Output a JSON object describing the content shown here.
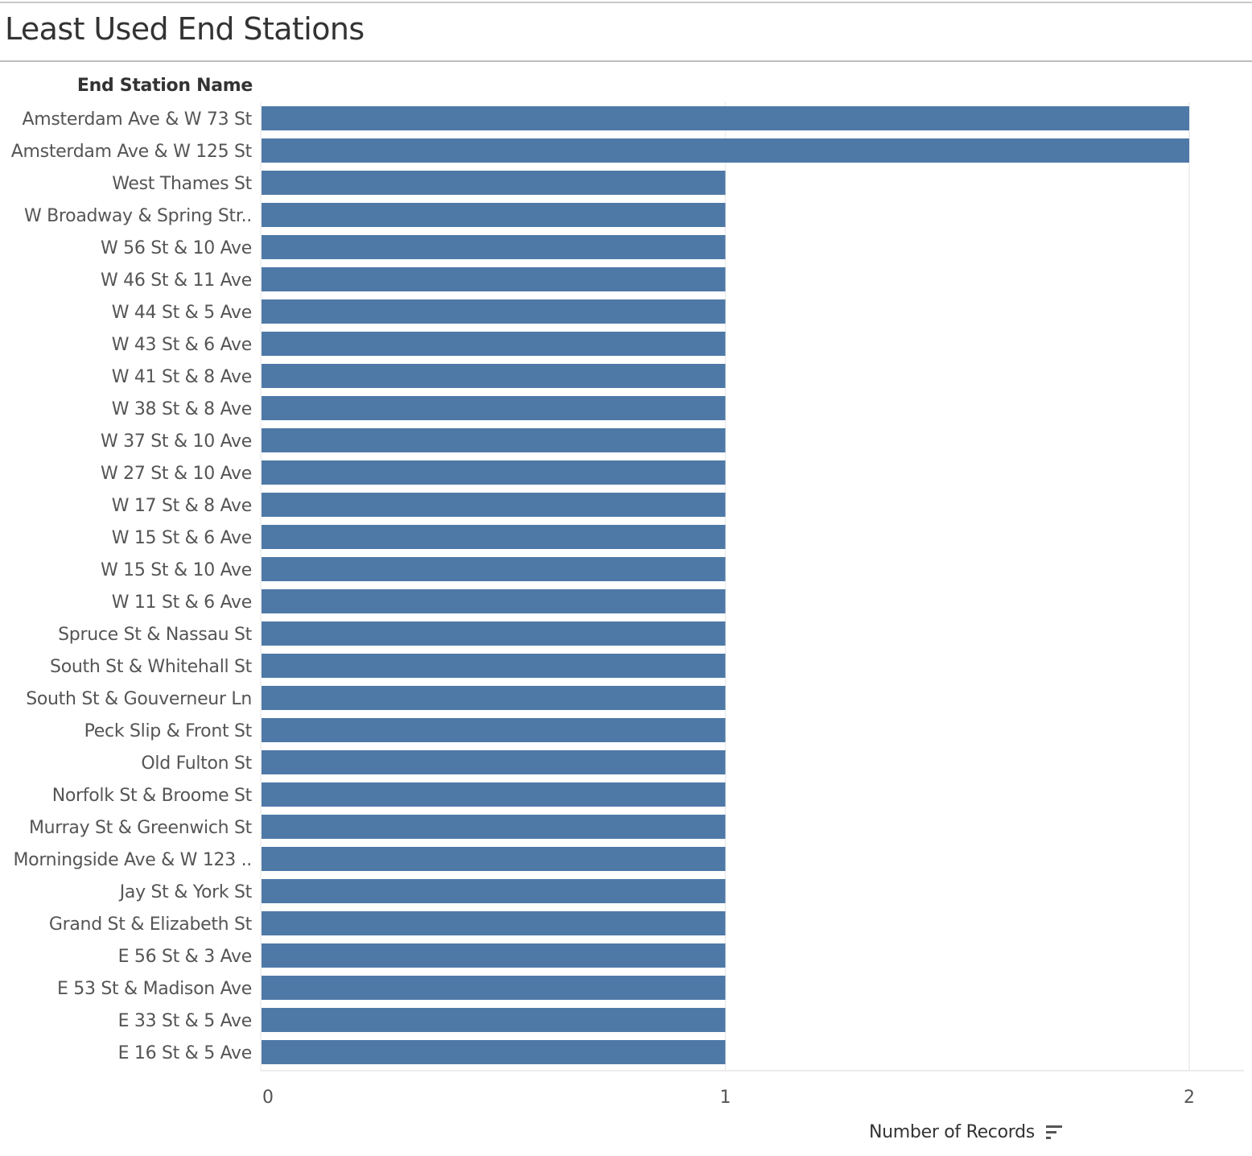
{
  "title": "Least Used End Stations",
  "row_header": "End Station Name",
  "x_axis_title": "Number of Records",
  "bar_color": "#4e79a7",
  "chart_data": {
    "type": "bar",
    "orientation": "horizontal",
    "categories": [
      "Amsterdam Ave & W 73 St",
      "Amsterdam Ave & W 125 St",
      "West Thames St",
      "W Broadway & Spring Str..",
      "W 56 St & 10 Ave",
      "W 46 St & 11 Ave",
      "W 44 St & 5 Ave",
      "W 43 St & 6 Ave",
      "W 41 St & 8 Ave",
      "W 38 St & 8 Ave",
      "W 37 St & 10 Ave",
      "W 27 St & 10 Ave",
      "W 17 St & 8 Ave",
      "W 15 St & 6 Ave",
      "W 15 St & 10 Ave",
      "W 11 St & 6 Ave",
      "Spruce St & Nassau St",
      "South St & Whitehall St",
      "South St & Gouverneur Ln",
      "Peck Slip & Front St",
      "Old Fulton St",
      "Norfolk St & Broome St",
      "Murray St & Greenwich St",
      "Morningside Ave & W 123 ..",
      "Jay St & York St",
      "Grand St & Elizabeth St",
      "E 56 St & 3 Ave",
      "E 53 St & Madison Ave",
      "E 33 St & 5 Ave",
      "E 16 St & 5 Ave"
    ],
    "values": [
      2,
      2,
      1,
      1,
      1,
      1,
      1,
      1,
      1,
      1,
      1,
      1,
      1,
      1,
      1,
      1,
      1,
      1,
      1,
      1,
      1,
      1,
      1,
      1,
      1,
      1,
      1,
      1,
      1,
      1
    ],
    "xlim": [
      0,
      2.1
    ],
    "x_ticks": [
      0,
      1,
      2
    ],
    "grid": true
  }
}
